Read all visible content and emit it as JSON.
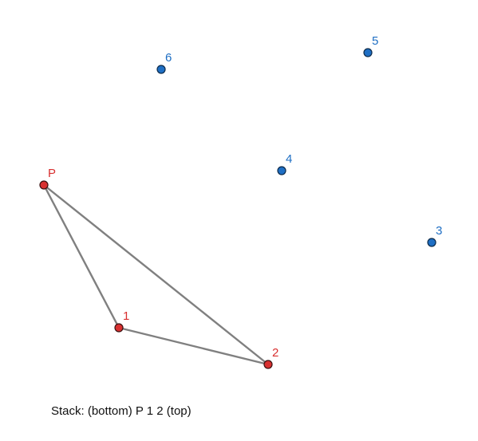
{
  "status_text": "Stack: (bottom) P 1 2 (top)",
  "points": [
    {
      "id": "P",
      "label": "P",
      "kind": "stack"
    },
    {
      "id": "1",
      "label": "1",
      "kind": "stack"
    },
    {
      "id": "2",
      "label": "2",
      "kind": "stack"
    },
    {
      "id": "3",
      "label": "3",
      "kind": "remaining"
    },
    {
      "id": "4",
      "label": "4",
      "kind": "remaining"
    },
    {
      "id": "5",
      "label": "5",
      "kind": "remaining"
    },
    {
      "id": "6",
      "label": "6",
      "kind": "remaining"
    }
  ],
  "edges": [
    [
      "P",
      "1"
    ],
    [
      "1",
      "2"
    ],
    [
      "2",
      "P"
    ]
  ],
  "colors": {
    "stack_point": "#d83030",
    "remaining_point": "#1f6fc4",
    "edge": "#808080"
  }
}
